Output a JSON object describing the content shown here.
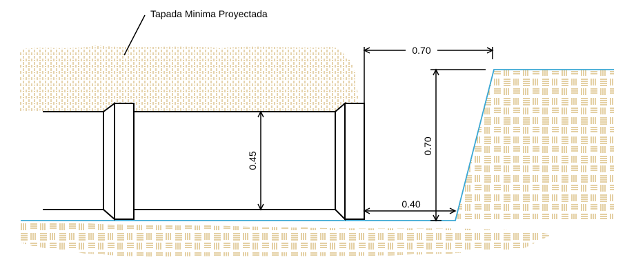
{
  "diagram": {
    "cover_label": "Tapada Minima Proyectada",
    "dim_pipe_height": "0.45",
    "dim_top_width": "0.70",
    "dim_trench_height": "0.70",
    "dim_bottom_width": "0.40"
  },
  "colors": {
    "soil_hatch": "#c8a04a",
    "ground_line": "#3aa7d4",
    "line": "#000000"
  }
}
